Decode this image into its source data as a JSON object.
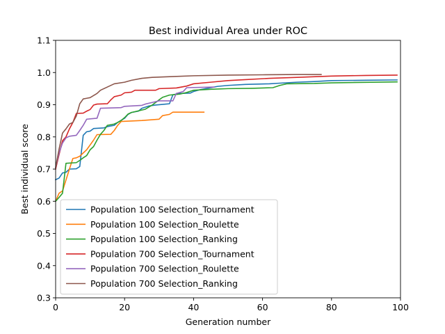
{
  "chart_data": {
    "type": "line",
    "title": "Best individual Area under ROC",
    "xlabel": "Generation number",
    "ylabel": "Best individual score",
    "xlim": [
      0,
      100
    ],
    "ylim": [
      0.3,
      1.1
    ],
    "xticks": [
      0,
      20,
      40,
      60,
      80,
      100
    ],
    "yticks": [
      0.3,
      0.4,
      0.5,
      0.6,
      0.7,
      0.8,
      0.9,
      1.0,
      1.1
    ],
    "xtick_labels": [
      "0",
      "20",
      "40",
      "60",
      "80",
      "100"
    ],
    "ytick_labels": [
      "0.3",
      "0.4",
      "0.5",
      "0.6",
      "0.7",
      "0.8",
      "0.9",
      "1.0",
      "1.1"
    ],
    "grid": false,
    "legend_position": "lower-left",
    "series": [
      {
        "name": "Population 100 Selection_Tournament",
        "color": "#1f77b4",
        "points": [
          [
            0,
            0.667
          ],
          [
            1,
            0.672
          ],
          [
            2,
            0.688
          ],
          [
            3,
            0.69
          ],
          [
            4,
            0.7
          ],
          [
            6,
            0.701
          ],
          [
            7,
            0.708
          ],
          [
            8,
            0.805
          ],
          [
            9,
            0.816
          ],
          [
            10,
            0.818
          ],
          [
            11,
            0.826
          ],
          [
            14,
            0.828
          ],
          [
            15,
            0.832
          ],
          [
            17,
            0.836
          ],
          [
            18,
            0.845
          ],
          [
            20,
            0.858
          ],
          [
            21,
            0.87
          ],
          [
            22,
            0.876
          ],
          [
            24,
            0.88
          ],
          [
            25,
            0.889
          ],
          [
            27,
            0.896
          ],
          [
            29,
            0.899
          ],
          [
            32,
            0.902
          ],
          [
            33,
            0.903
          ],
          [
            34,
            0.931
          ],
          [
            36,
            0.935
          ],
          [
            39,
            0.936
          ],
          [
            40,
            0.941
          ],
          [
            42,
            0.947
          ],
          [
            47,
            0.957
          ],
          [
            50,
            0.96
          ],
          [
            55,
            0.963
          ],
          [
            62,
            0.965
          ],
          [
            65,
            0.967
          ],
          [
            70,
            0.97
          ],
          [
            75,
            0.972
          ],
          [
            80,
            0.975
          ],
          [
            90,
            0.976
          ],
          [
            99,
            0.977
          ]
        ]
      },
      {
        "name": "Population 100 Selection_Roulette",
        "color": "#ff7f0e",
        "points": [
          [
            0,
            0.6
          ],
          [
            1,
            0.625
          ],
          [
            2,
            0.632
          ],
          [
            4,
            0.7
          ],
          [
            5,
            0.733
          ],
          [
            6,
            0.735
          ],
          [
            7,
            0.74
          ],
          [
            9,
            0.76
          ],
          [
            11,
            0.79
          ],
          [
            12,
            0.807
          ],
          [
            16,
            0.808
          ],
          [
            17,
            0.82
          ],
          [
            18,
            0.836
          ],
          [
            19,
            0.848
          ],
          [
            25,
            0.851
          ],
          [
            30,
            0.855
          ],
          [
            31,
            0.866
          ],
          [
            33,
            0.87
          ],
          [
            34,
            0.877
          ],
          [
            43,
            0.877
          ]
        ]
      },
      {
        "name": "Population 100 Selection_Ranking",
        "color": "#2ca02c",
        "points": [
          [
            0,
            0.6
          ],
          [
            1,
            0.612
          ],
          [
            2,
            0.625
          ],
          [
            3,
            0.718
          ],
          [
            6,
            0.72
          ],
          [
            7,
            0.727
          ],
          [
            8,
            0.735
          ],
          [
            9,
            0.742
          ],
          [
            10,
            0.76
          ],
          [
            11,
            0.77
          ],
          [
            12,
            0.79
          ],
          [
            13,
            0.808
          ],
          [
            14,
            0.82
          ],
          [
            15,
            0.836
          ],
          [
            17,
            0.84
          ],
          [
            18,
            0.845
          ],
          [
            19,
            0.851
          ],
          [
            20,
            0.86
          ],
          [
            21,
            0.871
          ],
          [
            22,
            0.876
          ],
          [
            26,
            0.886
          ],
          [
            28,
            0.899
          ],
          [
            30,
            0.915
          ],
          [
            31,
            0.923
          ],
          [
            33,
            0.93
          ],
          [
            36,
            0.933
          ],
          [
            38,
            0.938
          ],
          [
            40,
            0.945
          ],
          [
            45,
            0.948
          ],
          [
            50,
            0.95
          ],
          [
            57,
            0.951
          ],
          [
            63,
            0.953
          ],
          [
            65,
            0.96
          ],
          [
            67,
            0.965
          ],
          [
            75,
            0.966
          ],
          [
            80,
            0.968
          ],
          [
            99,
            0.971
          ]
        ]
      },
      {
        "name": "Population 700 Selection_Tournament",
        "color": "#d62728",
        "points": [
          [
            0,
            0.7
          ],
          [
            1,
            0.745
          ],
          [
            2,
            0.788
          ],
          [
            3,
            0.8
          ],
          [
            4,
            0.825
          ],
          [
            5,
            0.845
          ],
          [
            6,
            0.873
          ],
          [
            8,
            0.874
          ],
          [
            9,
            0.88
          ],
          [
            10,
            0.885
          ],
          [
            11,
            0.899
          ],
          [
            12,
            0.902
          ],
          [
            15,
            0.903
          ],
          [
            16,
            0.915
          ],
          [
            17,
            0.925
          ],
          [
            19,
            0.93
          ],
          [
            20,
            0.937
          ],
          [
            22,
            0.939
          ],
          [
            23,
            0.945
          ],
          [
            29,
            0.945
          ],
          [
            30,
            0.95
          ],
          [
            35,
            0.952
          ],
          [
            38,
            0.958
          ],
          [
            40,
            0.965
          ],
          [
            45,
            0.97
          ],
          [
            50,
            0.975
          ],
          [
            55,
            0.978
          ],
          [
            62,
            0.982
          ],
          [
            70,
            0.985
          ],
          [
            80,
            0.989
          ],
          [
            90,
            0.991
          ],
          [
            99,
            0.992
          ]
        ]
      },
      {
        "name": "Population 700 Selection_Roulette",
        "color": "#9467bd",
        "points": [
          [
            0,
            0.705
          ],
          [
            1,
            0.75
          ],
          [
            2,
            0.781
          ],
          [
            3,
            0.797
          ],
          [
            4,
            0.802
          ],
          [
            6,
            0.805
          ],
          [
            7,
            0.82
          ],
          [
            8,
            0.836
          ],
          [
            9,
            0.855
          ],
          [
            12,
            0.858
          ],
          [
            13,
            0.889
          ],
          [
            19,
            0.891
          ],
          [
            20,
            0.895
          ],
          [
            25,
            0.898
          ],
          [
            26,
            0.902
          ],
          [
            28,
            0.907
          ],
          [
            30,
            0.912
          ],
          [
            34,
            0.912
          ],
          [
            35,
            0.935
          ],
          [
            37,
            0.941
          ],
          [
            38,
            0.953
          ],
          [
            46,
            0.955
          ]
        ]
      },
      {
        "name": "Population 700 Selection_Ranking",
        "color": "#8c564b",
        "points": [
          [
            0,
            0.705
          ],
          [
            1,
            0.762
          ],
          [
            2,
            0.812
          ],
          [
            3,
            0.825
          ],
          [
            4,
            0.84
          ],
          [
            5,
            0.845
          ],
          [
            6,
            0.865
          ],
          [
            7,
            0.903
          ],
          [
            8,
            0.918
          ],
          [
            9,
            0.92
          ],
          [
            10,
            0.922
          ],
          [
            12,
            0.935
          ],
          [
            13,
            0.945
          ],
          [
            15,
            0.955
          ],
          [
            17,
            0.965
          ],
          [
            20,
            0.97
          ],
          [
            22,
            0.976
          ],
          [
            25,
            0.982
          ],
          [
            28,
            0.985
          ],
          [
            35,
            0.988
          ],
          [
            40,
            0.99
          ],
          [
            50,
            0.992
          ],
          [
            60,
            0.993
          ],
          [
            70,
            0.994
          ],
          [
            77,
            0.994
          ]
        ]
      }
    ]
  }
}
